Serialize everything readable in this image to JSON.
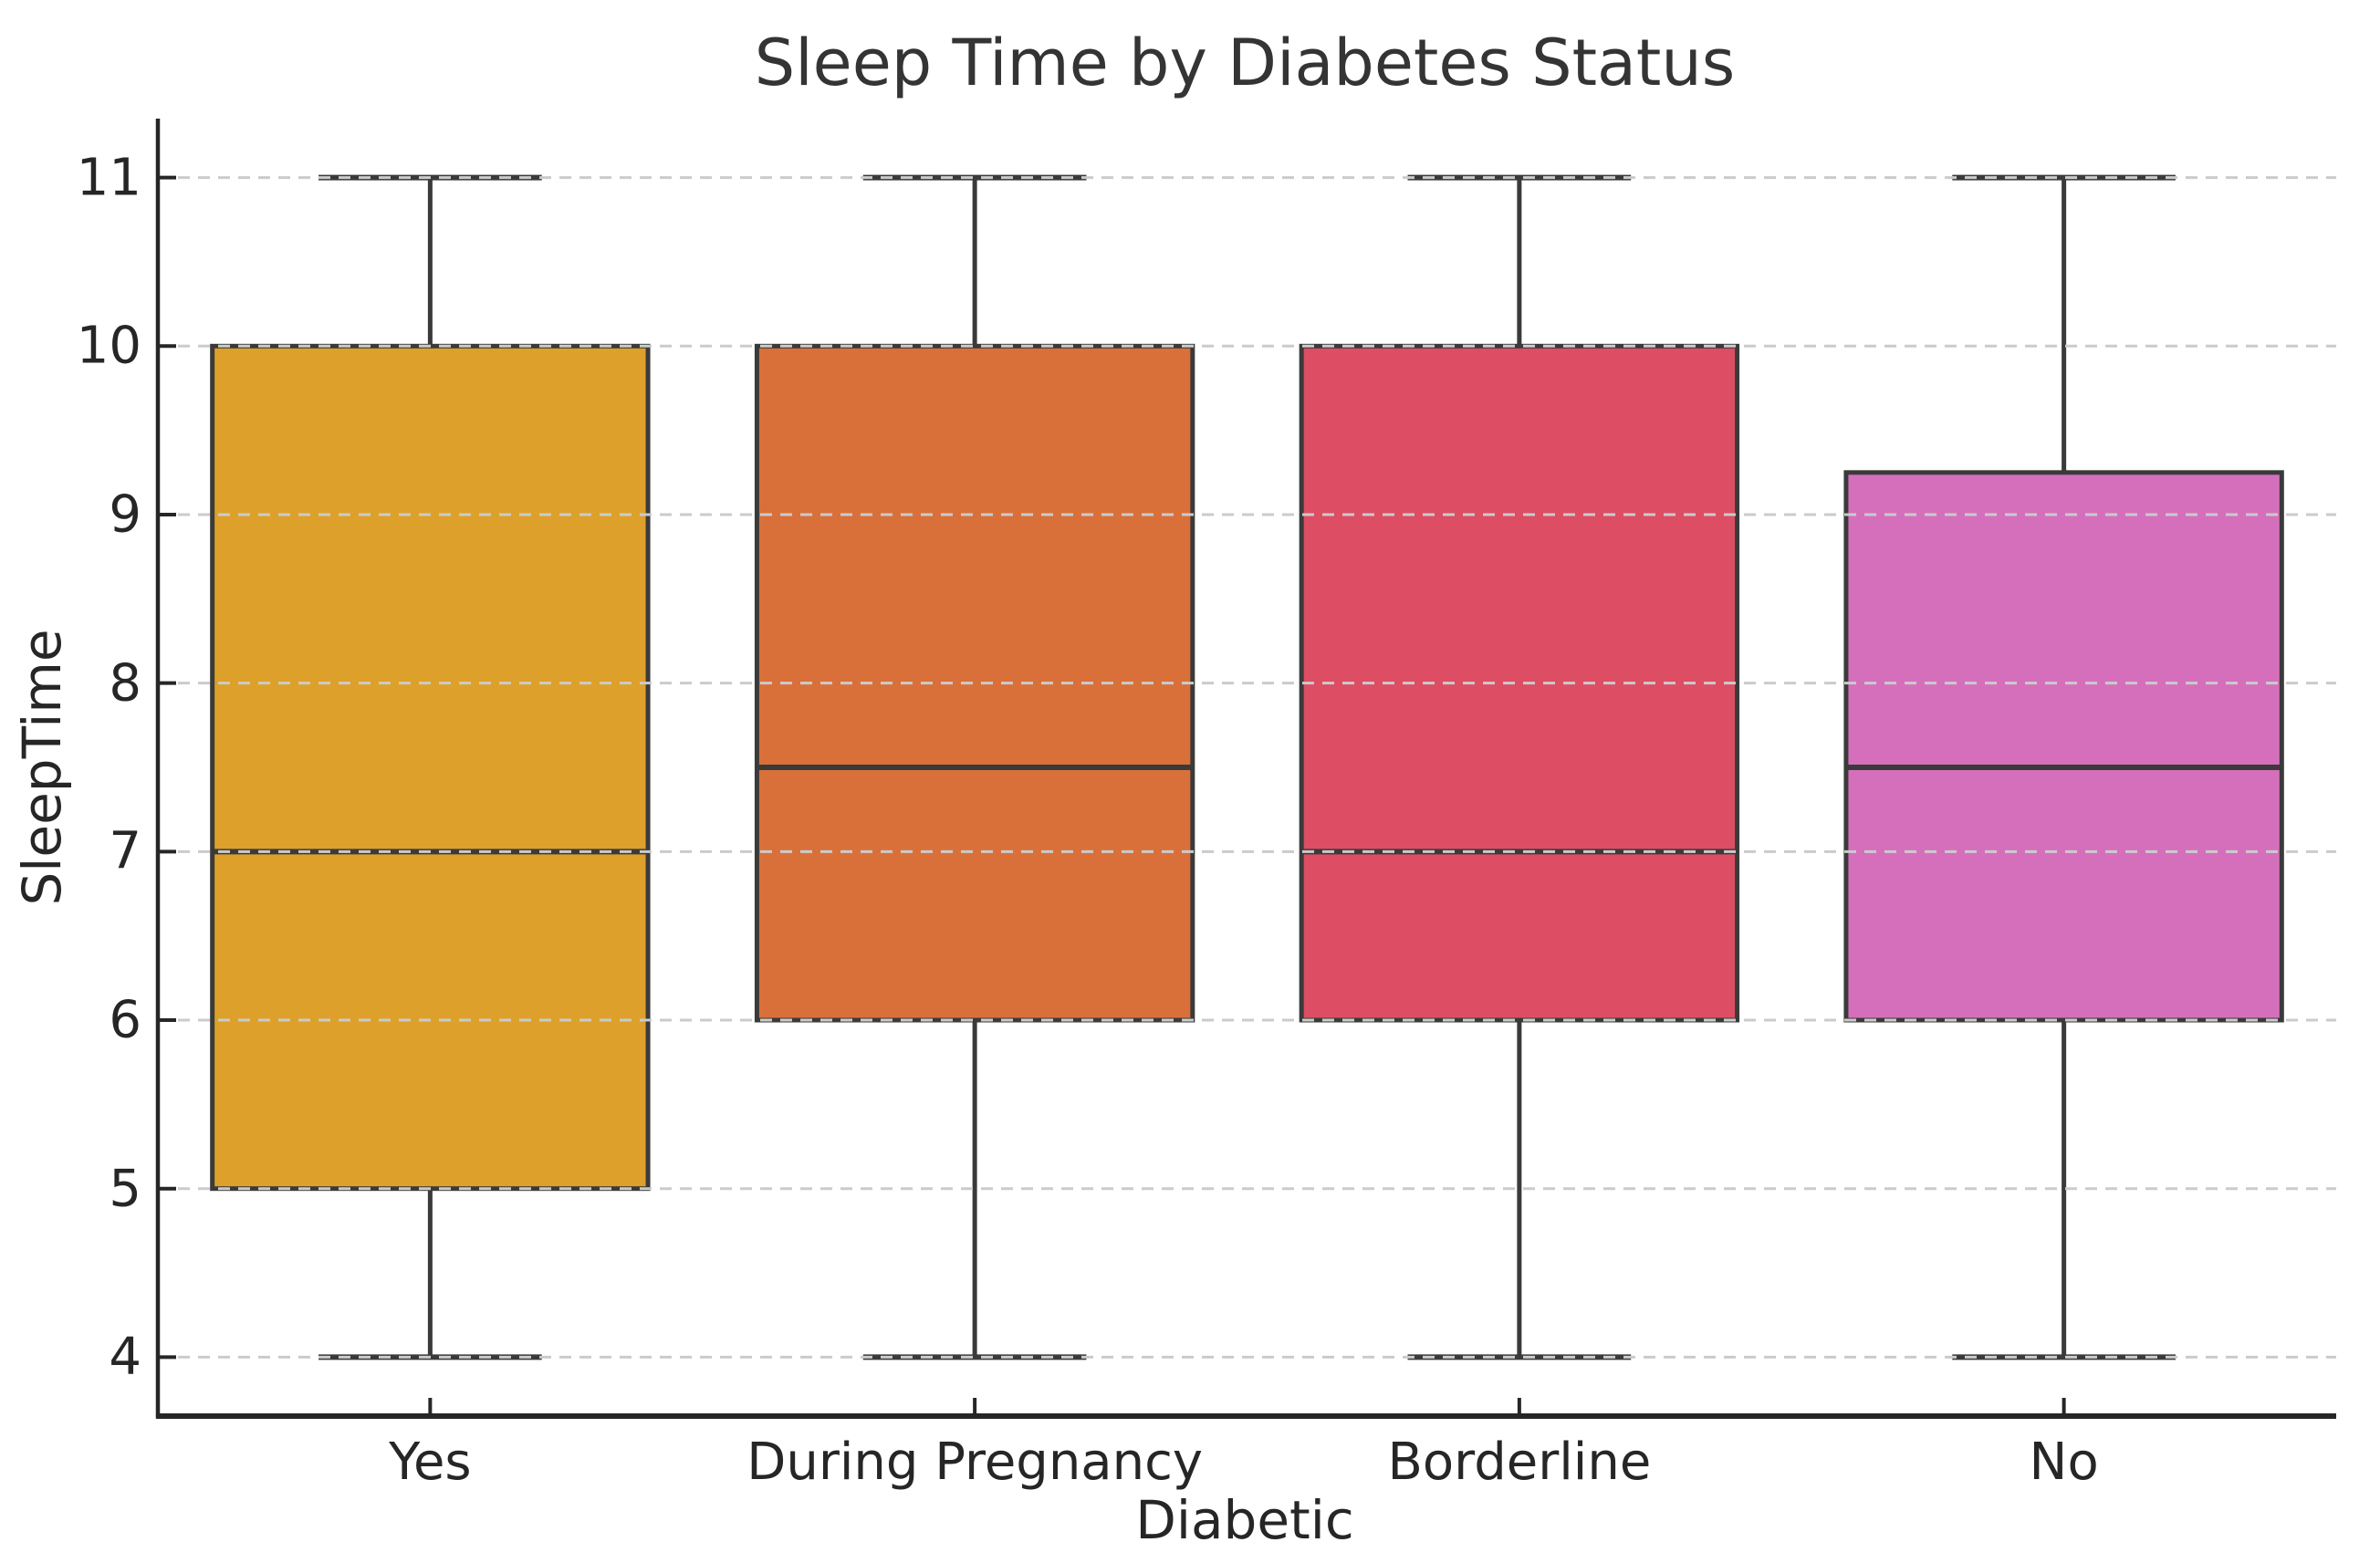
{
  "chart_data": {
    "type": "box",
    "title": "Sleep Time by Diabetes Status",
    "xlabel": "Diabetic",
    "ylabel": "SleepTime",
    "categories": [
      "Yes",
      "During Pregnancy",
      "Borderline",
      "No"
    ],
    "series": [
      {
        "name": "Yes",
        "whislo": 4,
        "q1": 5,
        "med": 7,
        "q3": 10,
        "whishi": 11,
        "color": "#dda02a"
      },
      {
        "name": "During Pregnancy",
        "whislo": 4,
        "q1": 6,
        "med": 7.5,
        "q3": 10,
        "whishi": 11,
        "color": "#d9703a"
      },
      {
        "name": "Borderline",
        "whislo": 4,
        "q1": 6,
        "med": 7,
        "q3": 10,
        "whishi": 11,
        "color": "#dd4d63"
      },
      {
        "name": "No",
        "whislo": 4,
        "q1": 6,
        "med": 7.5,
        "q3": 9.25,
        "whishi": 11,
        "color": "#d56fbc"
      }
    ],
    "yticks": [
      4,
      5,
      6,
      7,
      8,
      9,
      10,
      11
    ],
    "ylim": [
      3.65,
      11.35
    ],
    "grid": "horizontal-dashed",
    "legend": "none",
    "colors": {
      "grid": "#cbcbcb",
      "axis": "#262626",
      "box_line": "#3a3a3a",
      "text": "#262626",
      "background": "#ffffff"
    }
  }
}
